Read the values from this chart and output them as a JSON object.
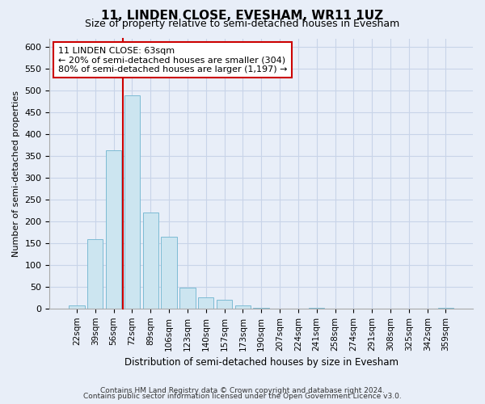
{
  "title": "11, LINDEN CLOSE, EVESHAM, WR11 1UZ",
  "subtitle": "Size of property relative to semi-detached houses in Evesham",
  "xlabel": "Distribution of semi-detached houses by size in Evesham",
  "ylabel": "Number of semi-detached properties",
  "footnote1": "Contains HM Land Registry data © Crown copyright and database right 2024.",
  "footnote2": "Contains public sector information licensed under the Open Government Licence v3.0.",
  "bar_labels": [
    "22sqm",
    "39sqm",
    "56sqm",
    "72sqm",
    "89sqm",
    "106sqm",
    "123sqm",
    "140sqm",
    "157sqm",
    "173sqm",
    "190sqm",
    "207sqm",
    "224sqm",
    "241sqm",
    "258sqm",
    "274sqm",
    "291sqm",
    "308sqm",
    "325sqm",
    "342sqm",
    "359sqm"
  ],
  "bar_values": [
    8,
    160,
    363,
    490,
    220,
    165,
    47,
    25,
    20,
    7,
    2,
    0,
    0,
    2,
    0,
    0,
    0,
    0,
    0,
    0,
    2
  ],
  "bar_color": "#cce5f0",
  "bar_edge_color": "#7dbbd4",
  "property_label": "11 LINDEN CLOSE: 63sqm",
  "vline_color": "#cc0000",
  "annotation_smaller": "← 20% of semi-detached houses are smaller (304)",
  "annotation_larger": "80% of semi-detached houses are larger (1,197) →",
  "annotation_box_color": "white",
  "annotation_box_edge_color": "#cc0000",
  "ylim": [
    0,
    620
  ],
  "yticks": [
    0,
    50,
    100,
    150,
    200,
    250,
    300,
    350,
    400,
    450,
    500,
    550,
    600
  ],
  "background_color": "#e8eef8",
  "plot_background_color": "#e8eef8",
  "grid_color": "#c8d4e8",
  "title_fontsize": 11,
  "subtitle_fontsize": 9
}
